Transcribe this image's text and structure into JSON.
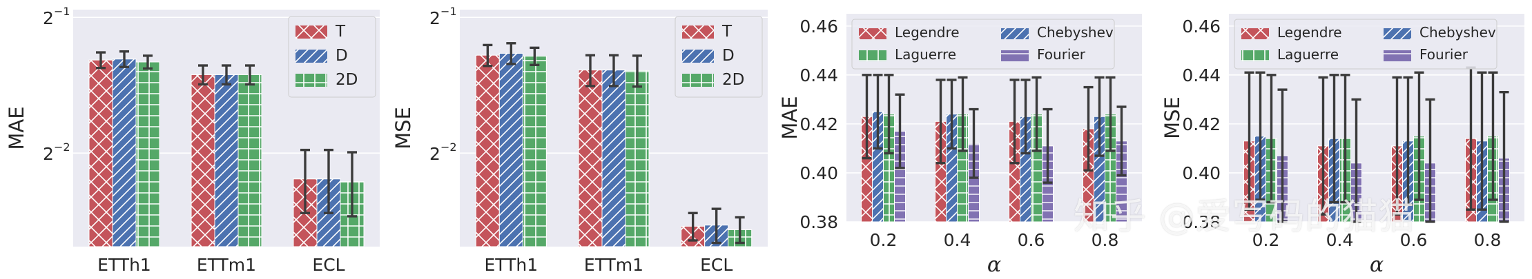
{
  "chart_data": [
    {
      "type": "bar",
      "ylabel": "MAE",
      "yscale": "log2",
      "ylim": [
        0.155,
        0.52
      ],
      "ytick_values": [
        0.5,
        0.25
      ],
      "ytick_labels": [
        {
          "base": "2",
          "exp": "−1"
        },
        {
          "base": "2",
          "exp": "−2"
        }
      ],
      "categories": [
        "ETTh1",
        "ETTm1",
        "ECL"
      ],
      "series": [
        {
          "name": "T",
          "color": "#c4545b",
          "hatch": "cross",
          "values": [
            0.402,
            0.373,
            0.219
          ],
          "errors": [
            0.016,
            0.018,
            0.035
          ]
        },
        {
          "name": "D",
          "color": "#4c72b0",
          "hatch": "diag",
          "values": [
            0.404,
            0.373,
            0.219
          ],
          "errors": [
            0.016,
            0.018,
            0.035
          ]
        },
        {
          "name": "2D",
          "color": "#55a868",
          "hatch": "grid",
          "values": [
            0.398,
            0.373,
            0.216
          ],
          "errors": [
            0.013,
            0.018,
            0.035
          ]
        }
      ],
      "legend": "top-right"
    },
    {
      "type": "bar",
      "ylabel": "MSE",
      "yscale": "log2",
      "ylim": [
        0.155,
        0.52
      ],
      "ytick_values": [
        0.5,
        0.25
      ],
      "ytick_labels": [
        {
          "base": "2",
          "exp": "−1"
        },
        {
          "base": "2",
          "exp": "−2"
        }
      ],
      "categories": [
        "ETTh1",
        "ETTm1",
        "ECL"
      ],
      "series": [
        {
          "name": "T",
          "color": "#c4545b",
          "hatch": "cross",
          "values": [
            0.412,
            0.382,
            0.172
          ],
          "errors": [
            0.022,
            0.03,
            0.012
          ]
        },
        {
          "name": "D",
          "color": "#4c72b0",
          "hatch": "diag",
          "values": [
            0.416,
            0.382,
            0.173
          ],
          "errors": [
            0.022,
            0.03,
            0.015
          ]
        },
        {
          "name": "2D",
          "color": "#55a868",
          "hatch": "grid",
          "values": [
            0.41,
            0.381,
            0.169
          ],
          "errors": [
            0.018,
            0.03,
            0.011
          ]
        }
      ],
      "legend": "top-right"
    },
    {
      "type": "bar",
      "ylabel": "MAE",
      "xlabel": "α",
      "ylim": [
        0.38,
        0.465
      ],
      "ytick_values": [
        0.38,
        0.4,
        0.42,
        0.44,
        0.46
      ],
      "ytick_labels": [
        "0.38",
        "0.40",
        "0.42",
        "0.44",
        "0.46"
      ],
      "categories": [
        "0.2",
        "0.4",
        "0.6",
        "0.8"
      ],
      "series": [
        {
          "name": "Legendre",
          "color": "#c4545b",
          "hatch": "cross",
          "values": [
            0.423,
            0.421,
            0.421,
            0.418
          ],
          "errors": [
            0.017,
            0.017,
            0.017,
            0.017
          ]
        },
        {
          "name": "Chebyshev",
          "color": "#4c72b0",
          "hatch": "diag",
          "values": [
            0.425,
            0.424,
            0.423,
            0.423
          ],
          "errors": [
            0.015,
            0.014,
            0.015,
            0.016
          ]
        },
        {
          "name": "Laguerre",
          "color": "#55a868",
          "hatch": "grid",
          "values": [
            0.424,
            0.424,
            0.424,
            0.424
          ],
          "errors": [
            0.016,
            0.015,
            0.015,
            0.015
          ]
        },
        {
          "name": "Fourier",
          "color": "#8172b2",
          "hatch": "hlines",
          "values": [
            0.417,
            0.412,
            0.411,
            0.413
          ],
          "errors": [
            0.015,
            0.014,
            0.015,
            0.014
          ]
        }
      ],
      "legend": "top"
    },
    {
      "type": "bar",
      "ylabel": "MSE",
      "xlabel": "α",
      "ylim": [
        0.38,
        0.465
      ],
      "ytick_values": [
        0.38,
        0.4,
        0.42,
        0.44,
        0.46
      ],
      "ytick_labels": [
        "0.38",
        "0.40",
        "0.42",
        "0.44",
        "0.46"
      ],
      "categories": [
        "0.2",
        "0.4",
        "0.6",
        "0.8"
      ],
      "series": [
        {
          "name": "Legendre",
          "color": "#c4545b",
          "hatch": "cross",
          "values": [
            0.413,
            0.411,
            0.411,
            0.414
          ],
          "errors": [
            0.028,
            0.028,
            0.028,
            0.029
          ]
        },
        {
          "name": "Chebyshev",
          "color": "#4c72b0",
          "hatch": "diag",
          "values": [
            0.415,
            0.414,
            0.413,
            0.413
          ],
          "errors": [
            0.026,
            0.026,
            0.026,
            0.028
          ]
        },
        {
          "name": "Laguerre",
          "color": "#55a868",
          "hatch": "grid",
          "values": [
            0.414,
            0.414,
            0.415,
            0.415
          ],
          "errors": [
            0.026,
            0.026,
            0.026,
            0.026
          ]
        },
        {
          "name": "Fourier",
          "color": "#8172b2",
          "hatch": "hlines",
          "values": [
            0.407,
            0.404,
            0.404,
            0.406
          ],
          "errors": [
            0.027,
            0.026,
            0.026,
            0.027
          ]
        }
      ],
      "legend": "top"
    }
  ],
  "watermark": "知乎 @爱写码的猫猫"
}
